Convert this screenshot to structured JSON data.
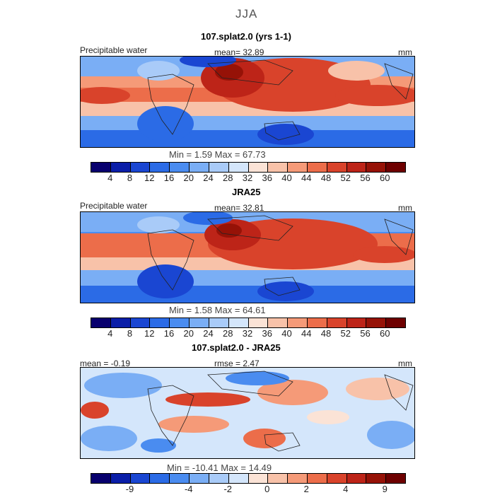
{
  "title": "JJA",
  "panels": [
    {
      "title": "107.splat2.0 (yrs 1-1)",
      "left_label": "Precipitable water",
      "center_label": "mean=   32.89",
      "units": "mm",
      "minmax": "Min =    1.59  Max =   67.73",
      "ticks": [
        "4",
        "8",
        "12",
        "16",
        "20",
        "24",
        "28",
        "32",
        "36",
        "40",
        "44",
        "48",
        "52",
        "56",
        "60"
      ]
    },
    {
      "title": "JRA25",
      "left_label": "Precipitable water",
      "center_label": "mean=   32.81",
      "units": "mm",
      "minmax": "Min =    1.58  Max =   64.61",
      "ticks": [
        "4",
        "8",
        "12",
        "16",
        "20",
        "24",
        "28",
        "32",
        "36",
        "40",
        "44",
        "48",
        "52",
        "56",
        "60"
      ]
    },
    {
      "title": "107.splat2.0 - JRA25",
      "left_label": "mean =  -0.19",
      "center_label": "rmse =   2.47",
      "units": "mm",
      "minmax": "Min = -10.41  Max =  14.49",
      "ticks": [
        "-9",
        "-4",
        "-2",
        "0",
        "2",
        "4",
        "9"
      ]
    }
  ],
  "colors": {
    "field_scale": [
      "#08006e",
      "#0a1ea8",
      "#1a46d2",
      "#2b6be6",
      "#4a8cf0",
      "#7aaef5",
      "#a9cbf8",
      "#d4e6fb",
      "#fbe3d6",
      "#f8c2a9",
      "#f59a78",
      "#ec6d4a",
      "#d9432b",
      "#bd2418",
      "#961207",
      "#6e0000"
    ],
    "diff_scale": [
      "#08006e",
      "#0a1ea8",
      "#1a46d2",
      "#2b6be6",
      "#4a8cf0",
      "#7aaef5",
      "#a9cbf8",
      "#d4e6fb",
      "#fbe3d6",
      "#f8c2a9",
      "#f59a78",
      "#ec6d4a",
      "#d9432b",
      "#bd2418",
      "#961207",
      "#6e0000"
    ]
  }
}
